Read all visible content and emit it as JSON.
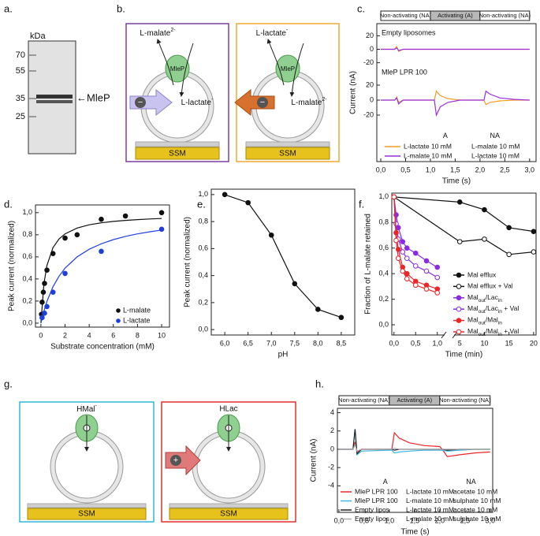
{
  "panel_labels": {
    "a": "a.",
    "b": "b.",
    "c": "c.",
    "d": "d.",
    "e": "e.",
    "f": "f.",
    "g": "g.",
    "h": "h."
  },
  "panel_a": {
    "unit": "kDa",
    "markers": [
      "70",
      "55",
      "35",
      "25"
    ],
    "band": "←MleP"
  },
  "panel_b": {
    "left": {
      "top": {
        "text": "L-malate",
        "sup": "2-"
      },
      "protein": "MleP",
      "inside": {
        "text": "L-lactate",
        "sup": "-"
      },
      "charge": "−",
      "support": "SSM"
    },
    "right": {
      "top": {
        "text": "L-lactate",
        "sup": "-"
      },
      "protein": "MleP",
      "inside": {
        "text": "L-malate",
        "sup": "2-"
      },
      "charge": "−",
      "support": "SSM"
    }
  },
  "panel_g": {
    "left": {
      "top": {
        "text": "HMal",
        "sup": "-"
      },
      "support": "SSM"
    },
    "right": {
      "top": "HLac",
      "charge": "+",
      "support": "SSM"
    }
  },
  "chart_data": [
    {
      "type": "line",
      "subtitle": "Empty liposomes",
      "phases": [
        "Non-activating (NA)",
        "Activating (A)",
        "Non-activating (NA)"
      ],
      "phase_bounds": [
        0,
        1,
        2,
        3
      ],
      "phase_colors": [
        "#ffffff",
        "#b8b8b8",
        "#ffffff"
      ],
      "xlim": [
        -0.08,
        3.13
      ],
      "ylim": [
        -38,
        38
      ],
      "yticks": [
        20,
        0,
        -20
      ],
      "x": [
        0,
        0.28,
        0.32,
        0.36,
        0.45,
        3
      ],
      "series": [
        {
          "color": "#f39b2a",
          "values": [
            0,
            0,
            4,
            -3,
            0,
            0
          ]
        },
        {
          "color": "#9a2fe0",
          "values": [
            0,
            0,
            2,
            -2,
            0,
            0
          ]
        }
      ]
    },
    {
      "type": "line",
      "subtitle": "MleP LPR 100",
      "xlabel": "Time (s)",
      "ylabel": "Current (nA)",
      "xlim": [
        -0.08,
        3.13
      ],
      "ylim": [
        -82,
        102
      ],
      "yticks": [
        20,
        0,
        -20
      ],
      "xticks": [
        {
          "value": 0,
          "label": "0,0"
        },
        {
          "value": 0.5,
          "label": "0,5"
        },
        {
          "value": 1,
          "label": "1,0"
        },
        {
          "value": 1.5,
          "label": "1,5"
        },
        {
          "value": 2,
          "label": "2,0"
        },
        {
          "value": 2.5,
          "label": "2,5"
        },
        {
          "value": 3,
          "label": "3,0"
        }
      ],
      "x": [
        0,
        0.28,
        0.32,
        0.36,
        0.45,
        1.0,
        1.08,
        1.12,
        1.2,
        1.35,
        1.6,
        2.0,
        2.08,
        2.12,
        2.2,
        2.4,
        2.7,
        3.0
      ],
      "series": [
        {
          "name": "L-lactate 10 mM",
          "legend_extra": [
            "L-malate 10 mM"
          ],
          "color": "#f39b2a",
          "values": [
            0,
            0,
            4,
            -3,
            0,
            0,
            0,
            12,
            6,
            2,
            0,
            0,
            0,
            -6,
            -3,
            -1,
            0,
            0
          ]
        },
        {
          "name": "L-malate 10 mM",
          "legend_extra": [
            "L-lactate 10 mM"
          ],
          "color": "#9a2fe0",
          "values": [
            0,
            0,
            3,
            -5,
            0,
            0,
            0,
            -20,
            -9,
            -3,
            0,
            0,
            0,
            12,
            8,
            3,
            1,
            0
          ]
        }
      ],
      "annotations": [
        {
          "text": "A",
          "x": 1.3,
          "y": -48
        },
        {
          "text": "NA",
          "x": 2.3,
          "y": -48
        }
      ]
    },
    {
      "type": "scatter",
      "xlabel": "Substrate concentration (mM)",
      "ylabel": "Peak current (normalized)",
      "xlim": [
        -0.45,
        10.65
      ],
      "ylim": [
        -0.036,
        1.07
      ],
      "xticks": [
        0,
        2,
        4,
        6,
        8,
        10
      ],
      "yticks": [
        {
          "value": 0,
          "label": "0,0"
        },
        {
          "value": 0.2,
          "label": "0,2"
        },
        {
          "value": 0.4,
          "label": "0,4"
        },
        {
          "value": 0.6,
          "label": "0,6"
        },
        {
          "value": 0.8,
          "label": "0,8"
        },
        {
          "value": 1,
          "label": "1,0"
        }
      ],
      "legend": "lower right",
      "series": [
        {
          "name": "L-malate",
          "color": "#111111",
          "x": [
            0.05,
            0.1,
            0.2,
            0.3,
            0.5,
            1,
            2,
            3,
            5,
            7,
            10
          ],
          "values": [
            0.08,
            0.19,
            0.28,
            0.36,
            0.48,
            0.63,
            0.77,
            0.8,
            0.94,
            0.97,
            1.0
          ],
          "fit_x": [
            0,
            0.25,
            0.5,
            1,
            1.5,
            2,
            3,
            4,
            5,
            6,
            7,
            8,
            9,
            10
          ],
          "fit_values": [
            0,
            0.354,
            0.521,
            0.683,
            0.762,
            0.808,
            0.861,
            0.89,
            0.908,
            0.921,
            0.93,
            0.937,
            0.943,
            0.947
          ]
        },
        {
          "name": "L-lactate",
          "color": "#1f3fdc",
          "x": [
            0.1,
            0.3,
            0.5,
            1,
            2,
            5,
            10
          ],
          "values": [
            0.05,
            0.09,
            0.15,
            0.28,
            0.45,
            0.65,
            0.85
          ],
          "fit_x": [
            0,
            0.25,
            0.5,
            1,
            1.5,
            2,
            3,
            4,
            5,
            6,
            7,
            8,
            9,
            10
          ],
          "fit_values": [
            0,
            0.109,
            0.196,
            0.329,
            0.425,
            0.498,
            0.6,
            0.669,
            0.718,
            0.756,
            0.785,
            0.808,
            0.827,
            0.843
          ]
        }
      ]
    },
    {
      "type": "line",
      "markers": true,
      "xlabel": "pH",
      "ylabel": "Peak current (normalized)",
      "xlim": [
        5.71,
        8.79
      ],
      "ylim": [
        -0.04,
        1.04
      ],
      "xticks": [
        {
          "value": 6,
          "label": "6,0"
        },
        {
          "value": 6.5,
          "label": "6,5"
        },
        {
          "value": 7,
          "label": "7,0"
        },
        {
          "value": 7.5,
          "label": "7,5"
        },
        {
          "value": 8,
          "label": "8,0"
        },
        {
          "value": 8.5,
          "label": "8,5"
        }
      ],
      "yticks": [
        {
          "value": 0,
          "label": "0,0"
        },
        {
          "value": 0.2,
          "label": "0,2"
        },
        {
          "value": 0.4,
          "label": "0,4"
        },
        {
          "value": 0.6,
          "label": "0,6"
        },
        {
          "value": 0.8,
          "label": "0,8"
        },
        {
          "value": 1,
          "label": "1,0"
        }
      ],
      "x": [
        6,
        6.5,
        7,
        7.5,
        8,
        8.5
      ],
      "series": [
        {
          "color": "#111111",
          "values": [
            1.0,
            0.94,
            0.7,
            0.34,
            0.15,
            0.09
          ]
        }
      ]
    },
    {
      "type": "line",
      "markers": true,
      "xlabel": "Time (min)",
      "ylabel": "Fraction of L-malate retained",
      "xlim": [
        [
          -0.05,
          1.15
        ],
        [
          4,
          20.5
        ]
      ],
      "ylim": [
        -0.08,
        1.03
      ],
      "xticks": [
        {
          "value": 0,
          "label": "0,0"
        },
        {
          "value": 0.5,
          "label": "0,5"
        },
        {
          "value": 1,
          "label": "1,0"
        },
        5,
        10,
        15,
        20
      ],
      "yticks": [
        {
          "value": 0,
          "label": "0,0"
        },
        {
          "value": 0.2,
          "label": "0,2"
        },
        {
          "value": 0.4,
          "label": "0,4"
        },
        {
          "value": 0.6,
          "label": "0,6"
        },
        {
          "value": 0.8,
          "label": "0,8"
        },
        {
          "value": 1,
          "label": "1,0"
        }
      ],
      "series": [
        {
          "name": "Mal efflux",
          "color": "#111111",
          "filled": true,
          "x": [
            0,
            5,
            10,
            15,
            20
          ],
          "values": [
            1.0,
            0.96,
            0.9,
            0.76,
            0.73
          ]
        },
        {
          "name": "Mal efflux + Val",
          "color": "#111111",
          "filled": false,
          "x": [
            0,
            5,
            10,
            15,
            20
          ],
          "values": [
            1.0,
            0.65,
            0.67,
            0.55,
            0.57
          ]
        },
        {
          "name": [
            {
              "text": "Mal"
            },
            {
              "sub": "out"
            },
            {
              "text": "/Lac"
            },
            {
              "sub": "in"
            }
          ],
          "color": "#8a2be2",
          "filled": true,
          "x": [
            0,
            0.05,
            0.1,
            0.2,
            0.3,
            0.5,
            0.75,
            1.0
          ],
          "values": [
            1.0,
            0.86,
            0.76,
            0.65,
            0.6,
            0.56,
            0.5,
            0.45
          ]
        },
        {
          "name": [
            {
              "text": "Mal"
            },
            {
              "sub": "out"
            },
            {
              "text": "/Lac"
            },
            {
              "sub": "in"
            },
            {
              "text": " + Val"
            }
          ],
          "color": "#8a2be2",
          "filled": false,
          "x": [
            0,
            0.05,
            0.1,
            0.2,
            0.3,
            0.5,
            0.75,
            1.0
          ],
          "values": [
            1.0,
            0.79,
            0.67,
            0.57,
            0.52,
            0.46,
            0.42,
            0.37
          ]
        },
        {
          "name": [
            {
              "text": "Mal"
            },
            {
              "sub": "out"
            },
            {
              "text": "/Mal"
            },
            {
              "sub": "in"
            }
          ],
          "color": "#e8262b",
          "filled": true,
          "x": [
            0,
            0.05,
            0.1,
            0.2,
            0.3,
            0.5,
            0.75,
            1.0
          ],
          "values": [
            1.0,
            0.72,
            0.59,
            0.45,
            0.4,
            0.34,
            0.31,
            0.28
          ]
        },
        {
          "name": [
            {
              "text": "Mal"
            },
            {
              "sub": "out"
            },
            {
              "text": "/Mal"
            },
            {
              "sub": "in"
            },
            {
              "text": " + Val"
            }
          ],
          "color": "#e8262b",
          "filled": false,
          "x": [
            0,
            0.05,
            0.1,
            0.2,
            0.3,
            0.5,
            0.75,
            1.0
          ],
          "values": [
            1.0,
            0.66,
            0.52,
            0.42,
            0.36,
            0.31,
            0.28,
            0.25
          ]
        }
      ]
    },
    {
      "type": "line",
      "phases": [
        "Non-activating (NA)",
        "Activating (A)",
        "Non-activating (NA)"
      ],
      "phase_bounds": [
        0,
        1,
        2,
        3
      ],
      "phase_colors": [
        "#ffffff",
        "#b8b8b8",
        "#ffffff"
      ],
      "xlabel": "Time (s)",
      "ylabel": "Current (nA)",
      "xlim": [
        -0.03,
        3.05
      ],
      "ylim": [
        -6.9,
        4.48
      ],
      "xticks": [
        {
          "value": 0,
          "label": "0,0"
        },
        {
          "value": 0.5,
          "label": "0,5"
        },
        {
          "value": 1,
          "label": "1,0"
        },
        {
          "value": 1.5,
          "label": "1,5"
        },
        {
          "value": 2,
          "label": "2,0"
        },
        {
          "value": 2.5,
          "label": "2,5"
        },
        {
          "value": 3,
          "label": "3,0"
        }
      ],
      "yticks": [
        4,
        2,
        0,
        -2,
        -4
      ],
      "x": [
        0,
        0.28,
        0.32,
        0.36,
        0.45,
        1.0,
        1.05,
        1.1,
        1.2,
        1.4,
        1.7,
        2.0,
        2.05,
        2.15,
        2.4,
        2.7,
        3.0
      ],
      "series": [
        {
          "name": "MleP LPR 100",
          "legend_extra": [
            "L-lactate 10 mM",
            "acetate 10 mM"
          ],
          "color": "#e8262b",
          "values": [
            0,
            0,
            0.8,
            -0.3,
            0,
            0,
            0,
            1.8,
            1.2,
            0.7,
            0.4,
            0.3,
            0,
            -0.8,
            -0.6,
            -0.4,
            -0.3
          ]
        },
        {
          "name": "MleP LPR 100",
          "legend_extra": [
            "L-malate 10 mM",
            "sulphate 10 mM"
          ],
          "color": "#3fb6e6",
          "values": [
            0,
            0,
            2.2,
            -0.6,
            -0.2,
            -0.1,
            -0.1,
            -0.4,
            -0.3,
            -0.2,
            -0.1,
            -0.1,
            -0.1,
            -0.2,
            -0.1,
            0,
            0
          ]
        },
        {
          "name": "Empty lipos",
          "legend_extra": [
            "L-lactate 10 mM",
            "acetate 10 mM"
          ],
          "color": "#222222",
          "values": [
            0,
            0,
            2.2,
            -0.5,
            0,
            0,
            0,
            -0.1,
            0,
            0,
            0,
            0,
            0,
            -0.1,
            0,
            0,
            0
          ]
        },
        {
          "name": "Empty lipos",
          "legend_extra": [
            "L-malate 10 mM",
            "sulphate 10 mM"
          ],
          "color": "#aaaaaa",
          "values": [
            0,
            0,
            0.5,
            -0.2,
            0,
            0,
            0,
            0.1,
            0,
            0,
            0,
            0,
            0,
            0,
            0,
            0,
            0
          ]
        }
      ],
      "annotations": [
        {
          "text": "A",
          "x": 0.92,
          "y": -3.6
        },
        {
          "text": "NA",
          "x": 2.62,
          "y": -3.6
        }
      ]
    }
  ]
}
